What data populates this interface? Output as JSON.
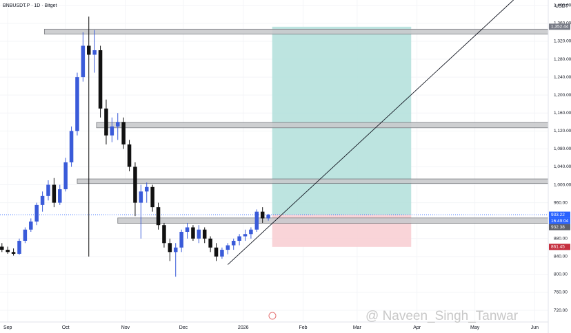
{
  "chart_data": {
    "type": "candlestick",
    "title": "BNBUSDT.P · 1D · Bitget",
    "y_unit": "USDT",
    "watermark": "@ Naveen_Singh_Tanwar",
    "countdown": "16:49:04",
    "xlim": [
      -4,
      280
    ],
    "xticks": [
      {
        "value": 0,
        "label": "Sep"
      },
      {
        "value": 30,
        "label": "Oct"
      },
      {
        "value": 61,
        "label": "Nov"
      },
      {
        "value": 91,
        "label": "Dec"
      },
      {
        "value": 122,
        "label": "2026"
      },
      {
        "value": 153,
        "label": "Feb"
      },
      {
        "value": 181,
        "label": "Mar"
      },
      {
        "value": 212,
        "label": "Apr"
      },
      {
        "value": 242,
        "label": "May"
      },
      {
        "value": 273,
        "label": "Jun"
      }
    ],
    "ylim": [
      694,
      1412
    ],
    "yticks": [
      {
        "value": 720,
        "label": "720.00"
      },
      {
        "value": 760,
        "label": "760.00"
      },
      {
        "value": 800,
        "label": "800.00"
      },
      {
        "value": 840,
        "label": "840.00"
      },
      {
        "value": 880,
        "label": "880.00"
      },
      {
        "value": 960,
        "label": "960.00"
      },
      {
        "value": 1000,
        "label": "1,000.00"
      },
      {
        "value": 1040,
        "label": "1,040.00"
      },
      {
        "value": 1080,
        "label": "1,080.00"
      },
      {
        "value": 1120,
        "label": "1,120.00"
      },
      {
        "value": 1160,
        "label": "1,160.00"
      },
      {
        "value": 1200,
        "label": "1,200.00"
      },
      {
        "value": 1240,
        "label": "1,240.00"
      },
      {
        "value": 1280,
        "label": "1,280.00"
      },
      {
        "value": 1320,
        "label": "1,320.00"
      },
      {
        "value": 1360,
        "label": "1,360.00"
      },
      {
        "value": 1400,
        "label": "1,400.00"
      }
    ],
    "up_color": "#3a5bd9",
    "down_color": "#111111",
    "x": [
      -3,
      0,
      3,
      6,
      9,
      12,
      15,
      18,
      21,
      24,
      27,
      30,
      33,
      36,
      39,
      42,
      45,
      48,
      51,
      54,
      57,
      60,
      63,
      66,
      69,
      72,
      75,
      78,
      81,
      84,
      87,
      90,
      93,
      96,
      99,
      102,
      105,
      108,
      111,
      114,
      117,
      120,
      123,
      126,
      129,
      132,
      135
    ],
    "open": [
      862,
      855,
      850,
      846,
      875,
      900,
      918,
      955,
      975,
      1000,
      960,
      990,
      1050,
      1120,
      1240,
      1310,
      1290,
      1300,
      1170,
      1110,
      1130,
      1140,
      1090,
      1040,
      960,
      985,
      995,
      950,
      910,
      870,
      850,
      860,
      895,
      905,
      880,
      900,
      880,
      860,
      840,
      855,
      865,
      875,
      885,
      890,
      900,
      940,
      925
    ],
    "high": [
      870,
      862,
      858,
      880,
      905,
      925,
      960,
      985,
      1010,
      1015,
      1000,
      1060,
      1130,
      1250,
      1340,
      1375,
      1345,
      1310,
      1190,
      1150,
      1160,
      1150,
      1100,
      1050,
      1000,
      1005,
      1000,
      960,
      915,
      880,
      870,
      900,
      915,
      910,
      910,
      905,
      885,
      870,
      860,
      870,
      880,
      890,
      900,
      905,
      945,
      950,
      935
    ],
    "low": [
      850,
      846,
      842,
      844,
      870,
      895,
      910,
      940,
      965,
      950,
      955,
      985,
      1040,
      1110,
      1230,
      840,
      1250,
      1150,
      1090,
      1095,
      1100,
      1080,
      1030,
      930,
      880,
      960,
      940,
      900,
      860,
      830,
      795,
      850,
      880,
      875,
      870,
      870,
      850,
      830,
      835,
      845,
      855,
      865,
      875,
      880,
      895,
      915,
      920
    ],
    "close": [
      855,
      850,
      846,
      875,
      900,
      918,
      955,
      975,
      1000,
      960,
      990,
      1050,
      1120,
      1240,
      1310,
      1290,
      1300,
      1170,
      1110,
      1130,
      1140,
      1090,
      1040,
      960,
      985,
      995,
      950,
      910,
      870,
      850,
      860,
      895,
      905,
      880,
      900,
      880,
      860,
      840,
      855,
      865,
      875,
      885,
      890,
      900,
      940,
      925,
      933
    ],
    "zones": [
      {
        "from": 19,
        "low": 1336,
        "high": 1347
      },
      {
        "from": 46,
        "low": 1127,
        "high": 1139
      },
      {
        "from": 36,
        "low": 1003,
        "high": 1013
      },
      {
        "from": 57,
        "low": 914,
        "high": 926
      }
    ],
    "position": {
      "start": 137,
      "end": 209,
      "entry": 933.22,
      "target": 1352.44,
      "stop": 861.45,
      "target_color": "#b2dfdb",
      "stop_color": "#f8ccd1"
    },
    "trendline": {
      "x": [
        114,
        262
      ],
      "y": [
        822,
        1412
      ]
    },
    "last_price": 933.22,
    "price_labels": [
      {
        "value": 1352.44,
        "label": "1,352.44",
        "color": "#787b86"
      },
      {
        "value": 933.22,
        "label": "933.22",
        "color": "#2962ff"
      },
      {
        "value": 932.38,
        "label": "932.38",
        "color": "#5d606b"
      },
      {
        "value": 861.45,
        "label": "861.45",
        "color": "#c62f3f"
      }
    ]
  }
}
